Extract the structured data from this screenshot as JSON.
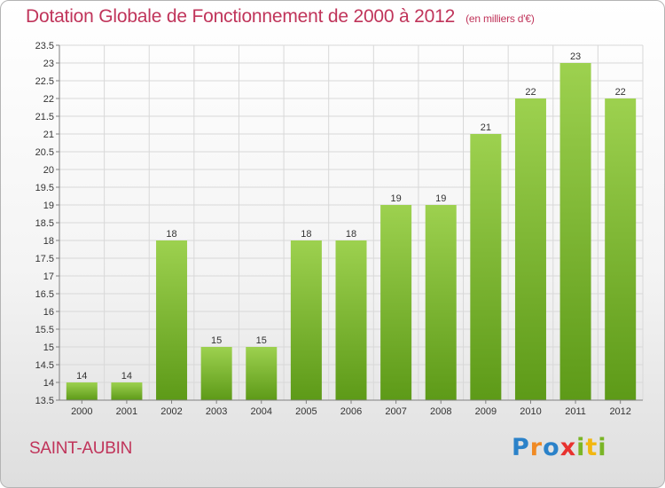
{
  "header": {
    "title": "Dotation Globale de Fonctionnement de 2000 à 2012",
    "subtitle": "(en milliers d'€)"
  },
  "footer": {
    "commune": "SAINT-AUBIN",
    "logo": [
      "P",
      "r",
      "o",
      "x",
      "i",
      "t",
      "i"
    ]
  },
  "colors": {
    "title": "#c0345a",
    "bar_top": "#9dd14f",
    "bar_bottom": "#5d9a18",
    "axis": "#808080",
    "grid": "#d8d8d8"
  },
  "chart_data": {
    "type": "bar",
    "title": "Dotation Globale de Fonctionnement de 2000 à 2012",
    "subtitle": "(en milliers d'€)",
    "categories": [
      "2000",
      "2001",
      "2002",
      "2003",
      "2004",
      "2005",
      "2006",
      "2007",
      "2008",
      "2009",
      "2010",
      "2011",
      "2012"
    ],
    "values": [
      14,
      14,
      18,
      15,
      15,
      18,
      18,
      19,
      19,
      21,
      22,
      23,
      22
    ],
    "ylim": [
      13.5,
      23.5
    ],
    "yticks": [
      "13.5",
      "14",
      "14.5",
      "15",
      "15.5",
      "16",
      "16.5",
      "17",
      "17.5",
      "18",
      "18.5",
      "19",
      "19.5",
      "20",
      "20.5",
      "21",
      "21.5",
      "22",
      "22.5",
      "23",
      "23.5"
    ],
    "grid": true,
    "data_labels": true
  }
}
